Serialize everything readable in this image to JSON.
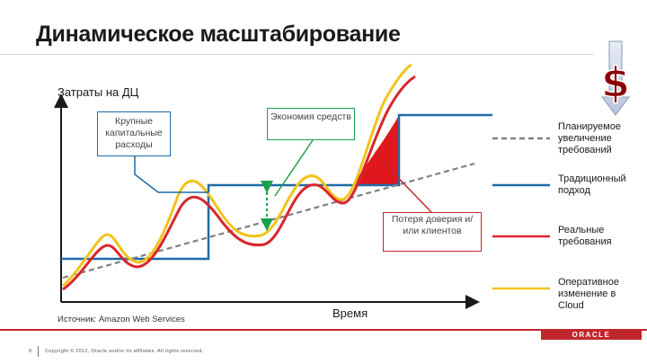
{
  "title": "Динамическое масштабирование",
  "axes": {
    "y_label": "Затраты на ДЦ",
    "x_label": "Время"
  },
  "callouts": {
    "capex": "Крупные капитальные расходы",
    "savings": "Экономия средств",
    "customer_loss": "Потеря доверия и/или клиентов"
  },
  "legend": [
    {
      "label": "Планируемое увеличение требований",
      "color": "#808080",
      "style": "dashed"
    },
    {
      "label": "Традиционный подход",
      "color": "#1f6aa6",
      "style": "solid"
    },
    {
      "label": "Реальные требования",
      "color": "#d9262b",
      "style": "solid"
    },
    {
      "label": "Оперативное изменение в Cloud",
      "color": "#f2c31b",
      "style": "solid"
    }
  ],
  "source": "Источник: Amazon Web Services",
  "footer": {
    "page_number": "8",
    "copyright": "Copyright © 2012, Oracle and/or its affiliates. All rights reserved.",
    "logo": "ORACLE"
  },
  "icons": {
    "dollar": "dollar-down-icon"
  },
  "colors": {
    "accent": "#c0272d",
    "green": "#19a04a",
    "blue": "#1f6aa6"
  }
}
